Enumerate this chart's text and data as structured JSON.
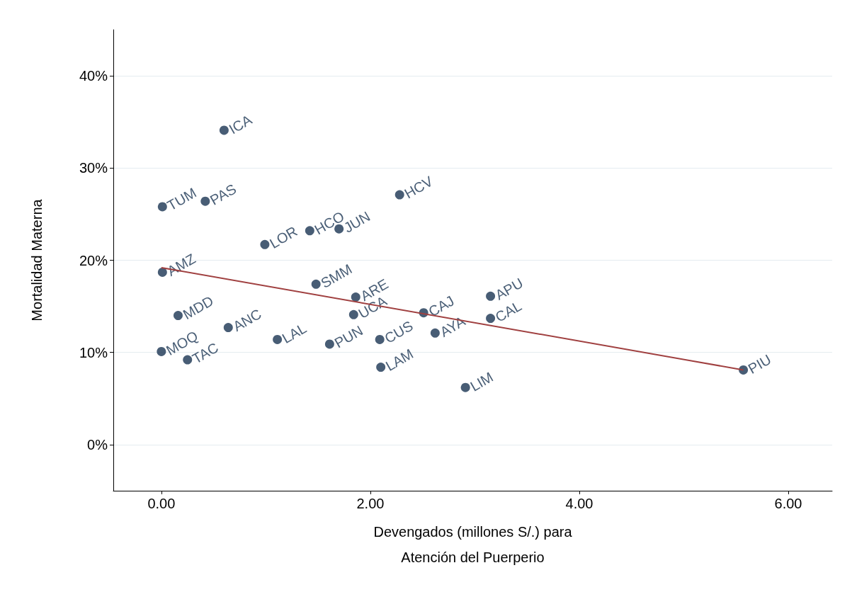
{
  "chart_data": {
    "type": "scatter",
    "xlabel": "Devengados (millones S/.) para\nAtención del Puerperio",
    "ylabel": "Mortalidad Materna",
    "xlim": [
      -0.46,
      6.42
    ],
    "ylim": [
      -5,
      45
    ],
    "xticks": [
      {
        "value": 0,
        "label": "0.00"
      },
      {
        "value": 2,
        "label": "2.00"
      },
      {
        "value": 4,
        "label": "4.00"
      },
      {
        "value": 6,
        "label": "6.00"
      }
    ],
    "yticks": [
      {
        "value": 0,
        "label": "0%"
      },
      {
        "value": 10,
        "label": "10%"
      },
      {
        "value": 20,
        "label": "20%"
      },
      {
        "value": 30,
        "label": "30%"
      },
      {
        "value": 40,
        "label": "40%"
      }
    ],
    "grid": "y",
    "marker": "circle",
    "series": [
      {
        "color": "#1a3552",
        "x": [
          0.6,
          0.01,
          0.42,
          2.28,
          0.99,
          1.42,
          1.7,
          0.01,
          1.48,
          1.86,
          0.16,
          0.64,
          1.84,
          2.51,
          3.15,
          3.15,
          2.62,
          2.09,
          1.11,
          1.61,
          0.0,
          0.25,
          2.1,
          2.91,
          5.57
        ],
        "values": [
          34.1,
          25.8,
          26.4,
          27.1,
          21.7,
          23.2,
          23.4,
          18.7,
          17.4,
          16.0,
          14.0,
          12.7,
          14.1,
          14.3,
          16.1,
          13.7,
          12.1,
          11.4,
          11.4,
          10.9,
          10.1,
          9.2,
          8.4,
          6.2,
          8.1
        ],
        "value_labels": [
          "ICA",
          "TUM",
          "PAS",
          "HCV",
          "LOR",
          "HCO",
          "JUN",
          "AMZ",
          "SMM",
          "ARE",
          "MDD",
          "ANC",
          "UCA",
          "CAJ",
          "APU",
          "CAL",
          "AYA",
          "CUS",
          "LAL",
          "PUN",
          "MOQ",
          "TAC",
          "LAM",
          "LIM",
          "PIU"
        ]
      },
      {
        "type": "line",
        "color": "#a04040",
        "marker": "none",
        "x": [
          0,
          5.57
        ],
        "values": [
          19.2,
          8.1
        ]
      }
    ]
  }
}
